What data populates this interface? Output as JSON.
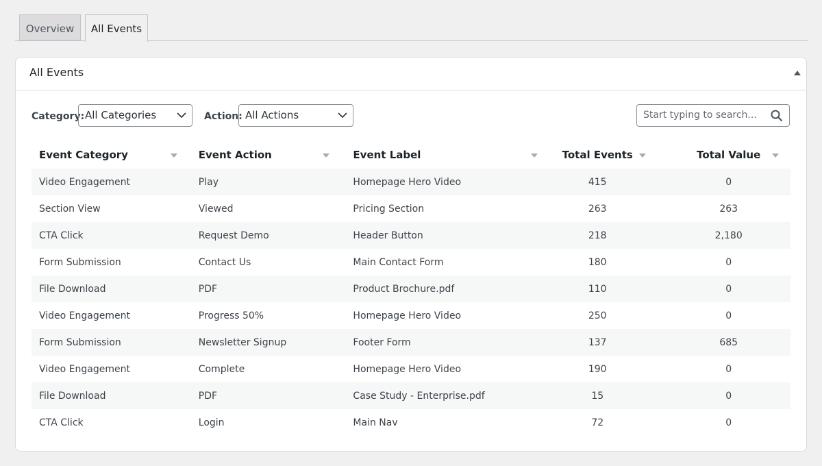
{
  "tabs": [
    "Overview",
    "All Events"
  ],
  "panel": {
    "title": "All Events"
  },
  "filters": {
    "category_label": "Category:",
    "category_value": "All Categories",
    "action_label": "Action:",
    "action_value": "All Actions",
    "search_placeholder": "Start typing to search..."
  },
  "table": {
    "headers": [
      "Event Category",
      "Event Action",
      "Event Label",
      "Total Events",
      "Total Value"
    ],
    "rows": [
      [
        "Video Engagement",
        "Play",
        "Homepage Hero Video",
        "415",
        "0"
      ],
      [
        "Section View",
        "Viewed",
        "Pricing Section",
        "263",
        "263"
      ],
      [
        "CTA Click",
        "Request Demo",
        "Header Button",
        "218",
        "2,180"
      ],
      [
        "Form Submission",
        "Contact Us",
        "Main Contact Form",
        "180",
        "0"
      ],
      [
        "File Download",
        "PDF",
        "Product Brochure.pdf",
        "110",
        "0"
      ],
      [
        "Video Engagement",
        "Progress 50%",
        "Homepage Hero Video",
        "250",
        "0"
      ],
      [
        "Form Submission",
        "Newsletter Signup",
        "Footer Form",
        "137",
        "685"
      ],
      [
        "Video Engagement",
        "Complete",
        "Homepage Hero Video",
        "190",
        "0"
      ],
      [
        "File Download",
        "PDF",
        "Case Study - Enterprise.pdf",
        "15",
        "0"
      ],
      [
        "CTA Click",
        "Login",
        "Main Nav",
        "72",
        "0"
      ]
    ]
  }
}
